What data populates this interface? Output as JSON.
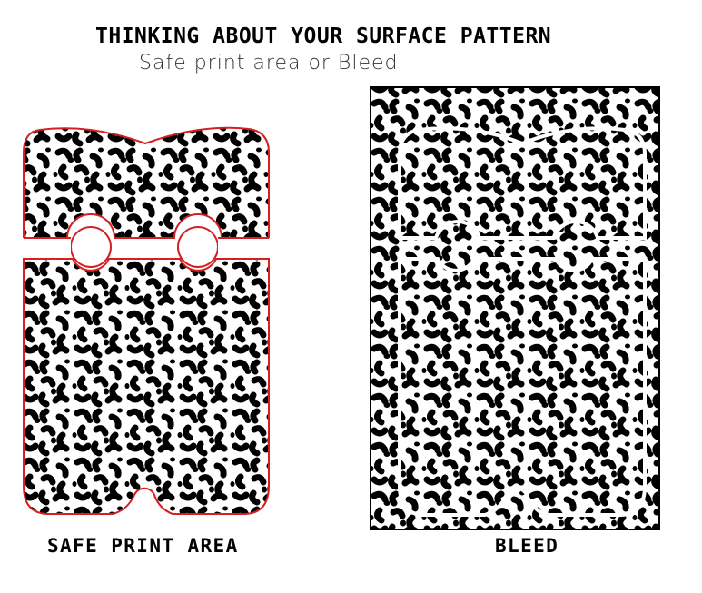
{
  "header": {
    "title": "THINKING ABOUT YOUR SURFACE PATTERN",
    "subtitle": "Safe print area or Bleed"
  },
  "panels": [
    {
      "key": "safe",
      "caption": "SAFE PRINT AREA"
    },
    {
      "key": "bleed",
      "caption": "BLEED"
    }
  ],
  "colors": {
    "safe_outline": "#d42020",
    "pattern_ink": "#000000",
    "pattern_paper": "#ffffff",
    "bleed_guide": "#ffffff"
  }
}
